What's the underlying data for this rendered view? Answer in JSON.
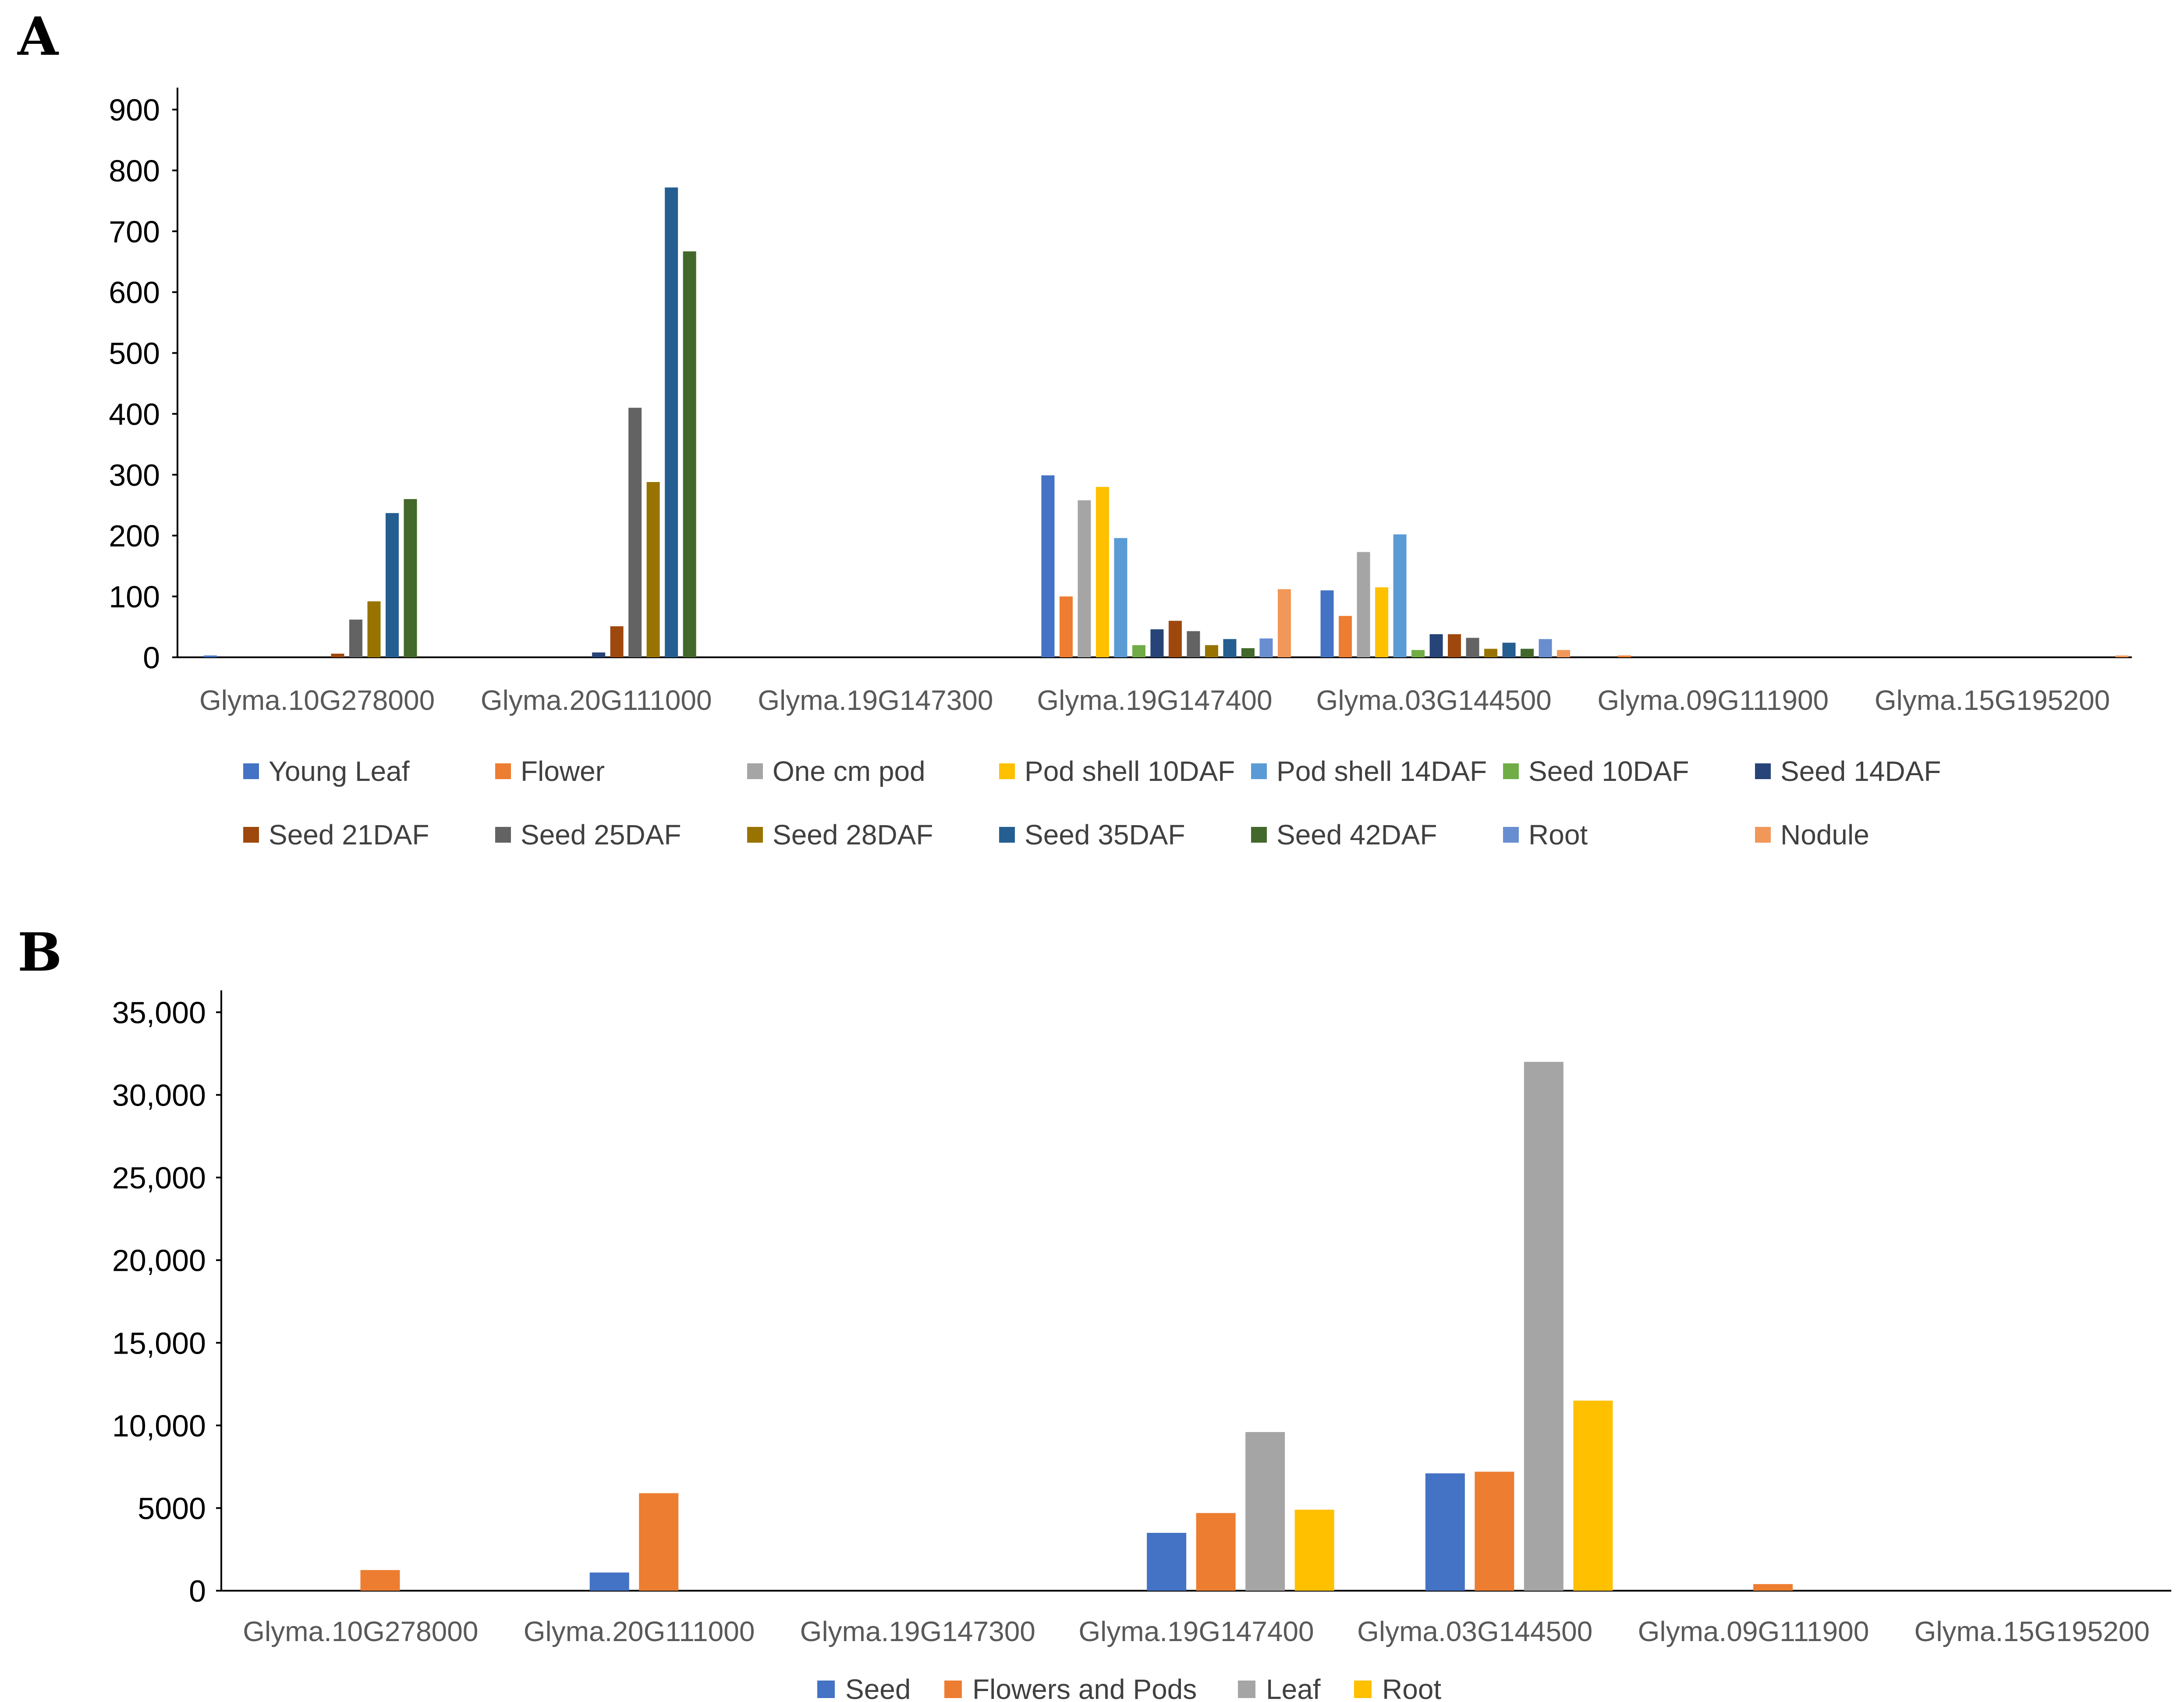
{
  "panel_letters": [
    "A",
    "B"
  ],
  "chart_data": [
    {
      "type": "bar",
      "panel": "A",
      "title": "",
      "xlabel": "",
      "ylabel": "",
      "ylim": [
        0,
        900
      ],
      "yticks": [
        0,
        100,
        200,
        300,
        400,
        500,
        600,
        700,
        800,
        900
      ],
      "ytick_labels": [
        "0",
        "100",
        "200",
        "300",
        "400",
        "500",
        "600",
        "700",
        "800",
        "900"
      ],
      "grid": false,
      "legend_position": "bottom",
      "categories": [
        "Glyma.10G278000",
        "Glyma.20G111000",
        "Glyma.19G147300",
        "Glyma.19G147400",
        "Glyma.03G144500",
        "Glyma.09G111900",
        "Glyma.15G195200"
      ],
      "series": [
        {
          "name": "Young Leaf",
          "color": "#4472C4",
          "values": [
            3,
            0,
            0,
            299,
            110,
            0,
            0
          ]
        },
        {
          "name": "Flower",
          "color": "#ED7D31",
          "values": [
            0,
            0,
            0,
            100,
            68,
            3,
            0
          ]
        },
        {
          "name": "One cm pod",
          "color": "#A5A5A5",
          "values": [
            0,
            0,
            0,
            258,
            173,
            0,
            0
          ]
        },
        {
          "name": "Pod shell 10DAF",
          "color": "#FFC000",
          "values": [
            0,
            0,
            0,
            280,
            115,
            0,
            0
          ]
        },
        {
          "name": "Pod shell 14DAF",
          "color": "#5B9BD5",
          "values": [
            0,
            0,
            0,
            196,
            202,
            0,
            0
          ]
        },
        {
          "name": "Seed 10DAF",
          "color": "#70AD47",
          "values": [
            0,
            0,
            0,
            20,
            12,
            0,
            0
          ]
        },
        {
          "name": "Seed 14DAF",
          "color": "#264478",
          "values": [
            0,
            8,
            0,
            46,
            38,
            0,
            0
          ]
        },
        {
          "name": "Seed 21DAF",
          "color": "#9E480E",
          "values": [
            6,
            51,
            0,
            60,
            38,
            0,
            0
          ]
        },
        {
          "name": "Seed 25DAF",
          "color": "#636363",
          "values": [
            62,
            410,
            0,
            43,
            32,
            0,
            0
          ]
        },
        {
          "name": "Seed 28DAF",
          "color": "#997300",
          "values": [
            92,
            288,
            0,
            20,
            14,
            0,
            0
          ]
        },
        {
          "name": "Seed 35DAF",
          "color": "#255E91",
          "values": [
            237,
            772,
            0,
            30,
            24,
            0,
            0
          ]
        },
        {
          "name": "Seed 42DAF",
          "color": "#43682B",
          "values": [
            260,
            667,
            0,
            15,
            14,
            0,
            0
          ]
        },
        {
          "name": "Root",
          "color": "#698ED0",
          "values": [
            0,
            0,
            0,
            31,
            30,
            0,
            0
          ]
        },
        {
          "name": "Nodule",
          "color": "#F1975A",
          "values": [
            0,
            0,
            0,
            112,
            12,
            0,
            3
          ]
        }
      ]
    },
    {
      "type": "bar",
      "panel": "B",
      "title": "",
      "xlabel": "",
      "ylabel": "",
      "ylim": [
        0,
        35000
      ],
      "yticks": [
        0,
        5000,
        10000,
        15000,
        20000,
        25000,
        30000,
        35000
      ],
      "ytick_labels": [
        "0",
        "5000",
        "10,000",
        "15,000",
        "20,000",
        "25,000",
        "30,000",
        "35,000"
      ],
      "grid": false,
      "legend_position": "bottom",
      "categories": [
        "Glyma.10G278000",
        "Glyma.20G111000",
        "Glyma.19G147300",
        "Glyma.19G147400",
        "Glyma.03G144500",
        "Glyma.09G111900",
        "Glyma.15G195200"
      ],
      "series": [
        {
          "name": "Seed",
          "color": "#4472C4",
          "values": [
            0,
            1100,
            0,
            3500,
            7100,
            0,
            0
          ]
        },
        {
          "name": "Flowers and Pods",
          "color": "#ED7D31",
          "values": [
            1250,
            5900,
            0,
            4700,
            7200,
            400,
            0
          ]
        },
        {
          "name": "Leaf",
          "color": "#A5A5A5",
          "values": [
            0,
            0,
            0,
            9600,
            32000,
            0,
            0
          ]
        },
        {
          "name": "Root",
          "color": "#FFC000",
          "values": [
            0,
            0,
            0,
            4900,
            11500,
            0,
            0
          ]
        }
      ]
    }
  ]
}
